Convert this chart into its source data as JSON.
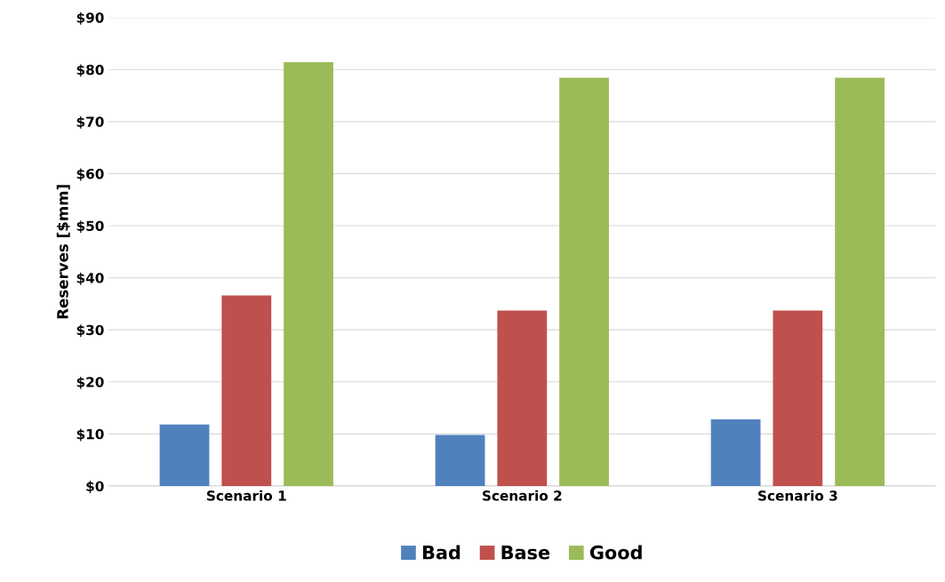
{
  "chart_data": {
    "type": "bar",
    "ylabel": "Reserves [$mm]",
    "categories": [
      "Scenario 1",
      "Scenario 2",
      "Scenario 3"
    ],
    "series": [
      {
        "name": "Bad",
        "color": "#4f81bd",
        "values": [
          11.8,
          9.8,
          12.8
        ]
      },
      {
        "name": "Base",
        "color": "#c0504d",
        "values": [
          36.6,
          33.7,
          33.7
        ]
      },
      {
        "name": "Good",
        "color": "#9bbb59",
        "values": [
          81.4,
          78.4,
          78.4
        ]
      }
    ],
    "ylim": [
      0,
      90
    ],
    "yticks": [
      {
        "value": 0,
        "label": "$0"
      },
      {
        "value": 10,
        "label": "$10"
      },
      {
        "value": 20,
        "label": "$20"
      },
      {
        "value": 30,
        "label": "$30"
      },
      {
        "value": 40,
        "label": "$40"
      },
      {
        "value": 50,
        "label": "$50"
      },
      {
        "value": 60,
        "label": "$60"
      },
      {
        "value": 70,
        "label": "$70"
      },
      {
        "value": 80,
        "label": "$80"
      },
      {
        "value": 90,
        "label": "$90"
      }
    ],
    "grid": "y",
    "legend": "bottom"
  }
}
